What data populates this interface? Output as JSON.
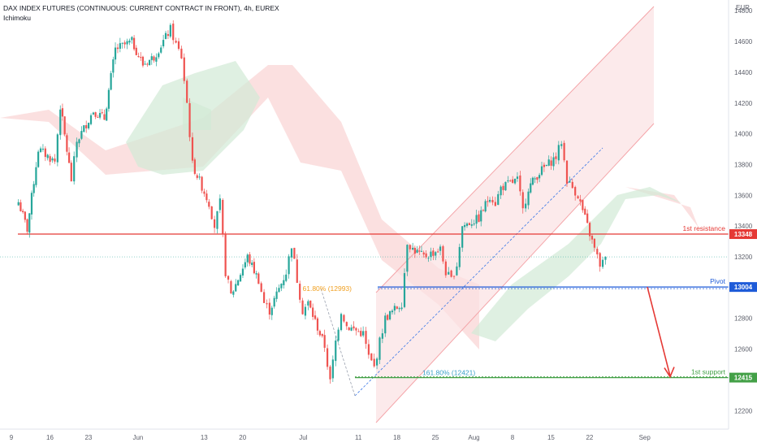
{
  "header": {
    "title": "DAX INDEX FUTURES (CONTINUOUS: CURRENT CONTRACT IN FRONT), 4h, EUREX",
    "indicator": "Ichimoku"
  },
  "colors": {
    "up": "#26a69a",
    "down": "#ef5350",
    "cloud_bull": "#d1e9d6",
    "cloud_bear": "#f9d6d6",
    "channel": "#f4a5a9",
    "resistance": "#e53935",
    "pivot": "#1e5bd8",
    "support": "#43a047",
    "fib_orange": "#f0a022",
    "arrow": "#e53935"
  },
  "chart_data": {
    "type": "candlestick",
    "title": "DAX INDEX FUTURES (CONTINUOUS: CURRENT CONTRACT IN FRONT), 4h, EUREX",
    "y_unit": "EUR",
    "ylim": [
      12150,
      14880
    ],
    "y_ticks": [
      12200,
      12400,
      12600,
      12800,
      13000,
      13200,
      13400,
      13600,
      13800,
      14000,
      14200,
      14400,
      14600,
      14800
    ],
    "x_ticks": [
      "9",
      "16",
      "23",
      "Jun",
      "13",
      "20",
      "Jul",
      "11",
      "18",
      "25",
      "Aug",
      "8",
      "15",
      "22",
      "Sep"
    ],
    "price_path": [
      {
        "t": "May 9",
        "v": 13600
      },
      {
        "t": "May 11",
        "v": 13380
      },
      {
        "t": "May 13",
        "v": 13900
      },
      {
        "t": "May 16",
        "v": 13820
      },
      {
        "t": "May 17",
        "v": 14180
      },
      {
        "t": "May 19",
        "v": 13700
      },
      {
        "t": "May 20",
        "v": 13950
      },
      {
        "t": "May 23",
        "v": 14150
      },
      {
        "t": "May 25",
        "v": 14100
      },
      {
        "t": "May 27",
        "v": 14550
      },
      {
        "t": "May 30",
        "v": 14600
      },
      {
        "t": "Jun 1",
        "v": 14450
      },
      {
        "t": "Jun 3",
        "v": 14500
      },
      {
        "t": "Jun 6",
        "v": 14680
      },
      {
        "t": "Jun 7",
        "v": 14580
      },
      {
        "t": "Jun 8",
        "v": 14500
      },
      {
        "t": "Jun 9",
        "v": 14200
      },
      {
        "t": "Jun 10",
        "v": 13800
      },
      {
        "t": "Jun 13",
        "v": 13550
      },
      {
        "t": "Jun 14",
        "v": 13400
      },
      {
        "t": "Jun 15",
        "v": 13550
      },
      {
        "t": "Jun 16",
        "v": 13100
      },
      {
        "t": "Jun 17",
        "v": 12950
      },
      {
        "t": "Jun 20",
        "v": 13200
      },
      {
        "t": "Jun 22",
        "v": 13050
      },
      {
        "t": "Jun 23",
        "v": 12900
      },
      {
        "t": "Jun 24",
        "v": 12850
      },
      {
        "t": "Jun 27",
        "v": 13100
      },
      {
        "t": "Jun 28",
        "v": 13280
      },
      {
        "t": "Jun 29",
        "v": 13050
      },
      {
        "t": "Jun 30",
        "v": 12850
      },
      {
        "t": "Jul 1",
        "v": 12900
      },
      {
        "t": "Jul 4",
        "v": 12620
      },
      {
        "t": "Jul 5",
        "v": 12385
      },
      {
        "t": "Jul 6",
        "v": 12650
      },
      {
        "t": "Jul 7",
        "v": 12850
      },
      {
        "t": "Jul 8",
        "v": 12750
      },
      {
        "t": "Jul 11",
        "v": 12700
      },
      {
        "t": "Jul 12",
        "v": 12550
      },
      {
        "t": "Jul 13",
        "v": 12480
      },
      {
        "t": "Jul 14",
        "v": 12650
      },
      {
        "t": "Jul 15",
        "v": 12800
      },
      {
        "t": "Jul 18",
        "v": 12900
      },
      {
        "t": "Jul 19",
        "v": 13300
      },
      {
        "t": "Jul 20",
        "v": 13250
      },
      {
        "t": "Jul 22",
        "v": 13200
      },
      {
        "t": "Jul 25",
        "v": 13250
      },
      {
        "t": "Jul 26",
        "v": 13100
      },
      {
        "t": "Jul 27",
        "v": 13050
      },
      {
        "t": "Jul 28",
        "v": 13150
      },
      {
        "t": "Jul 29",
        "v": 13400
      },
      {
        "t": "Aug 1",
        "v": 13450
      },
      {
        "t": "Aug 3",
        "v": 13600
      },
      {
        "t": "Aug 4",
        "v": 13550
      },
      {
        "t": "Aug 5",
        "v": 13650
      },
      {
        "t": "Aug 8",
        "v": 13700
      },
      {
        "t": "Aug 9",
        "v": 13500
      },
      {
        "t": "Aug 10",
        "v": 13650
      },
      {
        "t": "Aug 12",
        "v": 13750
      },
      {
        "t": "Aug 15",
        "v": 13850
      },
      {
        "t": "Aug 16",
        "v": 13950
      },
      {
        "t": "Aug 17",
        "v": 13700
      },
      {
        "t": "Aug 18",
        "v": 13650
      },
      {
        "t": "Aug 19",
        "v": 13600
      },
      {
        "t": "Aug 22",
        "v": 13250
      },
      {
        "t": "Aug 23",
        "v": 13150
      },
      {
        "t": "Aug 24",
        "v": 13180
      }
    ],
    "levels": [
      {
        "name": "1st resistance",
        "value": 13348
      },
      {
        "name": "Pivot",
        "value": 13004
      },
      {
        "name": "1st support",
        "value": 12415
      }
    ],
    "fib_labels": [
      {
        "text": "61.80% (12993)",
        "value": 12993
      },
      {
        "text": "161.80% (12421)",
        "value": 12421
      }
    ],
    "current_price": 13200
  }
}
